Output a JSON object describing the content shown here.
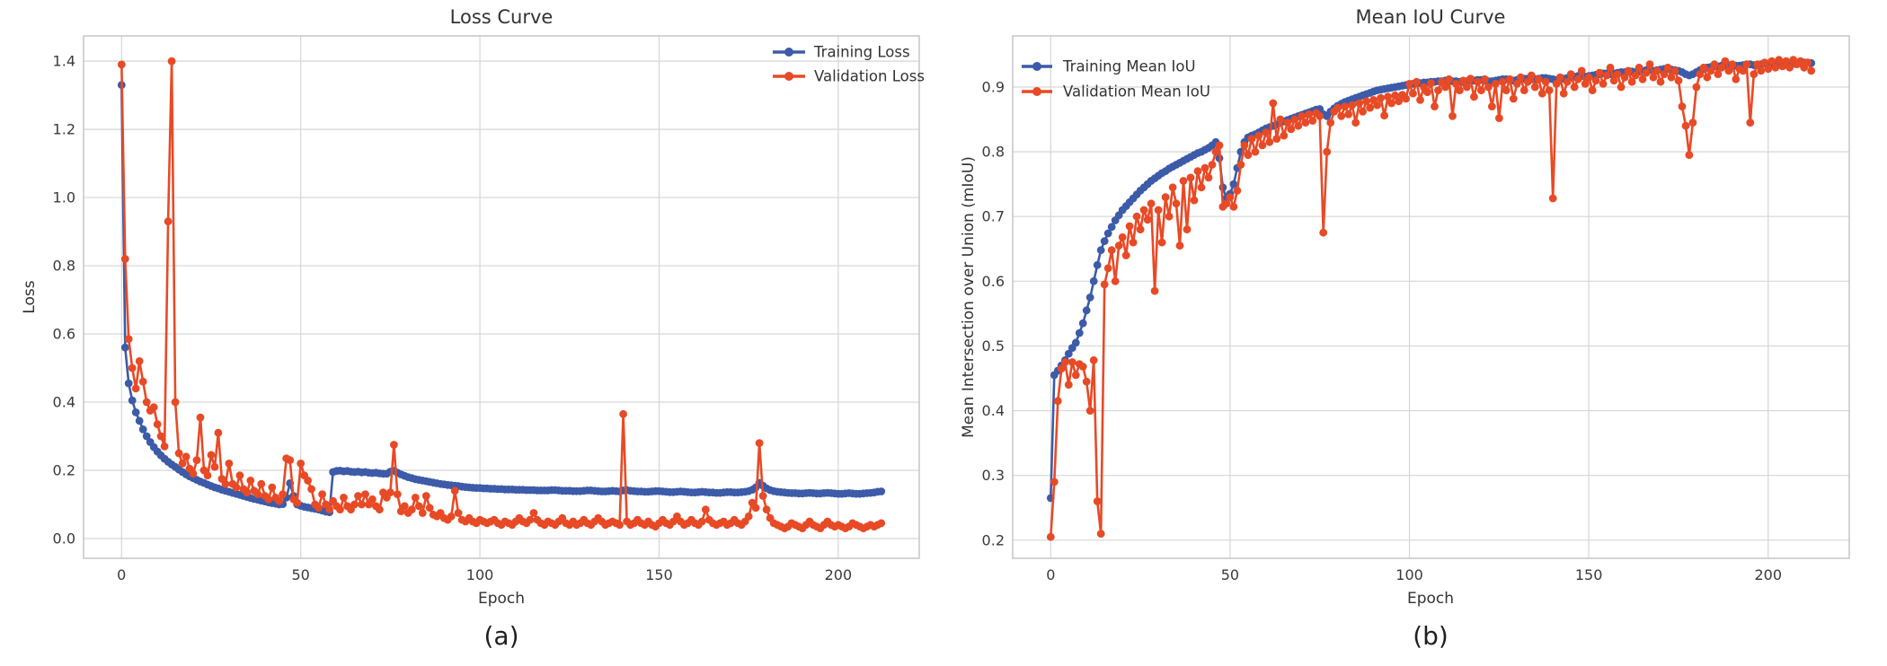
{
  "figure": {
    "background": "#ffffff",
    "captions": {
      "a": "(a)",
      "b": "(b)"
    }
  },
  "colors": {
    "training": "#3C5BA8",
    "validation": "#E84A26",
    "grid": "#d6d6d6",
    "spine": "#c2c2c2",
    "text": "#333333"
  },
  "chart_data": [
    {
      "type": "line",
      "title": "Loss Curve",
      "xlabel": "Epoch",
      "ylabel": "Loss",
      "x_start": 0,
      "x_step": 1,
      "xlim": [
        -10.6,
        222.6
      ],
      "ylim": [
        -0.058,
        1.474
      ],
      "xticks": [
        0,
        50,
        100,
        150,
        200
      ],
      "yticks": [
        0.0,
        0.2,
        0.4,
        0.6,
        0.8,
        1.0,
        1.2,
        1.4
      ],
      "grid": true,
      "legend_position": "upper right",
      "series": [
        {
          "name": "Training Loss",
          "color": "#3C5BA8",
          "values": [
            1.33,
            0.56,
            0.455,
            0.405,
            0.37,
            0.345,
            0.32,
            0.3,
            0.283,
            0.268,
            0.255,
            0.244,
            0.234,
            0.225,
            0.217,
            0.21,
            0.202,
            0.195,
            0.188,
            0.182,
            0.177,
            0.172,
            0.167,
            0.163,
            0.158,
            0.154,
            0.15,
            0.147,
            0.143,
            0.14,
            0.137,
            0.134,
            0.131,
            0.128,
            0.125,
            0.122,
            0.119,
            0.116,
            0.114,
            0.111,
            0.109,
            0.106,
            0.104,
            0.102,
            0.1,
            0.101,
            0.12,
            0.162,
            0.125,
            0.1,
            0.096,
            0.093,
            0.091,
            0.089,
            0.087,
            0.085,
            0.082,
            0.079,
            0.077,
            0.195,
            0.198,
            0.199,
            0.197,
            0.198,
            0.196,
            0.195,
            0.196,
            0.194,
            0.195,
            0.193,
            0.192,
            0.193,
            0.191,
            0.19,
            0.19,
            0.196,
            0.199,
            0.193,
            0.188,
            0.184,
            0.18,
            0.177,
            0.174,
            0.172,
            0.17,
            0.168,
            0.166,
            0.164,
            0.162,
            0.16,
            0.159,
            0.157,
            0.156,
            0.155,
            0.154,
            0.152,
            0.151,
            0.15,
            0.149,
            0.148,
            0.148,
            0.147,
            0.147,
            0.146,
            0.146,
            0.145,
            0.145,
            0.144,
            0.144,
            0.144,
            0.143,
            0.143,
            0.143,
            0.142,
            0.142,
            0.142,
            0.141,
            0.141,
            0.141,
            0.141,
            0.142,
            0.142,
            0.141,
            0.14,
            0.14,
            0.14,
            0.139,
            0.139,
            0.139,
            0.14,
            0.141,
            0.141,
            0.14,
            0.139,
            0.138,
            0.138,
            0.139,
            0.14,
            0.139,
            0.138,
            0.141,
            0.142,
            0.14,
            0.139,
            0.138,
            0.138,
            0.137,
            0.137,
            0.138,
            0.139,
            0.139,
            0.138,
            0.137,
            0.136,
            0.136,
            0.137,
            0.138,
            0.137,
            0.136,
            0.135,
            0.135,
            0.136,
            0.137,
            0.136,
            0.135,
            0.135,
            0.134,
            0.134,
            0.135,
            0.136,
            0.136,
            0.135,
            0.135,
            0.136,
            0.137,
            0.139,
            0.143,
            0.15,
            0.163,
            0.155,
            0.147,
            0.142,
            0.139,
            0.137,
            0.136,
            0.135,
            0.134,
            0.133,
            0.133,
            0.132,
            0.132,
            0.133,
            0.134,
            0.133,
            0.132,
            0.132,
            0.133,
            0.134,
            0.133,
            0.132,
            0.131,
            0.131,
            0.132,
            0.133,
            0.132,
            0.131,
            0.131,
            0.132,
            0.133,
            0.134,
            0.135,
            0.137,
            0.138
          ]
        },
        {
          "name": "Validation Loss",
          "color": "#E84A26",
          "values": [
            1.39,
            0.82,
            0.585,
            0.5,
            0.44,
            0.52,
            0.46,
            0.4,
            0.375,
            0.385,
            0.335,
            0.3,
            0.27,
            0.93,
            1.4,
            0.4,
            0.25,
            0.22,
            0.24,
            0.205,
            0.19,
            0.23,
            0.355,
            0.2,
            0.185,
            0.245,
            0.21,
            0.31,
            0.175,
            0.16,
            0.22,
            0.16,
            0.15,
            0.185,
            0.145,
            0.135,
            0.17,
            0.14,
            0.13,
            0.16,
            0.125,
            0.115,
            0.15,
            0.12,
            0.11,
            0.13,
            0.235,
            0.23,
            0.115,
            0.105,
            0.22,
            0.185,
            0.17,
            0.145,
            0.1,
            0.09,
            0.13,
            0.1,
            0.085,
            0.11,
            0.095,
            0.085,
            0.12,
            0.095,
            0.085,
            0.1,
            0.125,
            0.1,
            0.13,
            0.1,
            0.115,
            0.095,
            0.085,
            0.135,
            0.12,
            0.135,
            0.275,
            0.13,
            0.08,
            0.095,
            0.075,
            0.085,
            0.12,
            0.095,
            0.075,
            0.125,
            0.09,
            0.07,
            0.065,
            0.075,
            0.06,
            0.055,
            0.065,
            0.14,
            0.075,
            0.055,
            0.05,
            0.06,
            0.05,
            0.045,
            0.055,
            0.05,
            0.045,
            0.05,
            0.055,
            0.045,
            0.04,
            0.05,
            0.045,
            0.04,
            0.05,
            0.06,
            0.05,
            0.045,
            0.055,
            0.075,
            0.055,
            0.045,
            0.04,
            0.05,
            0.045,
            0.04,
            0.05,
            0.06,
            0.045,
            0.04,
            0.05,
            0.04,
            0.045,
            0.055,
            0.045,
            0.04,
            0.05,
            0.06,
            0.05,
            0.04,
            0.045,
            0.05,
            0.045,
            0.04,
            0.365,
            0.05,
            0.04,
            0.045,
            0.055,
            0.045,
            0.04,
            0.05,
            0.04,
            0.035,
            0.045,
            0.055,
            0.045,
            0.04,
            0.05,
            0.065,
            0.05,
            0.04,
            0.045,
            0.055,
            0.045,
            0.04,
            0.05,
            0.085,
            0.055,
            0.045,
            0.04,
            0.045,
            0.05,
            0.04,
            0.045,
            0.055,
            0.045,
            0.04,
            0.05,
            0.065,
            0.105,
            0.09,
            0.28,
            0.125,
            0.085,
            0.06,
            0.045,
            0.04,
            0.035,
            0.03,
            0.035,
            0.045,
            0.04,
            0.035,
            0.03,
            0.04,
            0.05,
            0.04,
            0.035,
            0.03,
            0.04,
            0.05,
            0.04,
            0.035,
            0.04,
            0.035,
            0.03,
            0.035,
            0.045,
            0.04,
            0.035,
            0.03,
            0.035,
            0.04,
            0.035,
            0.04,
            0.045
          ]
        }
      ]
    },
    {
      "type": "line",
      "title": "Mean IoU Curve",
      "xlabel": "Epoch",
      "ylabel": "Mean Intersection over Union (mIoU)",
      "x_start": 0,
      "x_step": 1,
      "xlim": [
        -10.6,
        222.6
      ],
      "ylim": [
        0.172,
        0.979
      ],
      "xticks": [
        0,
        50,
        100,
        150,
        200
      ],
      "yticks": [
        0.2,
        0.3,
        0.4,
        0.5,
        0.6,
        0.7,
        0.8,
        0.9
      ],
      "grid": true,
      "legend_position": "upper left",
      "series": [
        {
          "name": "Training Mean IoU",
          "color": "#3C5BA8",
          "values": [
            0.265,
            0.455,
            0.462,
            0.47,
            0.478,
            0.488,
            0.497,
            0.505,
            0.52,
            0.535,
            0.555,
            0.575,
            0.6,
            0.625,
            0.648,
            0.662,
            0.674,
            0.684,
            0.694,
            0.702,
            0.71,
            0.716,
            0.722,
            0.728,
            0.734,
            0.74,
            0.745,
            0.75,
            0.755,
            0.759,
            0.763,
            0.767,
            0.77,
            0.774,
            0.777,
            0.78,
            0.783,
            0.786,
            0.789,
            0.792,
            0.795,
            0.798,
            0.8,
            0.803,
            0.806,
            0.81,
            0.815,
            0.79,
            0.745,
            0.728,
            0.735,
            0.75,
            0.775,
            0.8,
            0.815,
            0.822,
            0.825,
            0.827,
            0.83,
            0.833,
            0.836,
            0.838,
            0.84,
            0.842,
            0.845,
            0.847,
            0.849,
            0.851,
            0.853,
            0.855,
            0.857,
            0.859,
            0.861,
            0.863,
            0.865,
            0.866,
            0.858,
            0.855,
            0.862,
            0.867,
            0.871,
            0.874,
            0.877,
            0.879,
            0.881,
            0.883,
            0.885,
            0.887,
            0.889,
            0.891,
            0.893,
            0.895,
            0.896,
            0.897,
            0.898,
            0.899,
            0.9,
            0.901,
            0.902,
            0.903,
            0.904,
            0.905,
            0.906,
            0.906,
            0.907,
            0.907,
            0.908,
            0.908,
            0.909,
            0.909,
            0.91,
            0.91,
            0.909,
            0.909,
            0.908,
            0.908,
            0.909,
            0.91,
            0.91,
            0.911,
            0.911,
            0.91,
            0.909,
            0.909,
            0.91,
            0.911,
            0.912,
            0.912,
            0.911,
            0.91,
            0.911,
            0.912,
            0.913,
            0.913,
            0.912,
            0.912,
            0.913,
            0.914,
            0.914,
            0.913,
            0.912,
            0.911,
            0.912,
            0.913,
            0.914,
            0.915,
            0.916,
            0.917,
            0.917,
            0.916,
            0.917,
            0.918,
            0.919,
            0.92,
            0.921,
            0.921,
            0.92,
            0.921,
            0.922,
            0.923,
            0.923,
            0.924,
            0.924,
            0.923,
            0.924,
            0.925,
            0.926,
            0.926,
            0.925,
            0.926,
            0.927,
            0.928,
            0.928,
            0.927,
            0.926,
            0.925,
            0.923,
            0.92,
            0.918,
            0.92,
            0.923,
            0.926,
            0.928,
            0.93,
            0.931,
            0.932,
            0.932,
            0.933,
            0.933,
            0.934,
            0.934,
            0.933,
            0.933,
            0.934,
            0.935,
            0.935,
            0.934,
            0.934,
            0.935,
            0.936,
            0.936,
            0.935,
            0.935,
            0.936,
            0.937,
            0.937,
            0.936,
            0.936,
            0.937,
            0.937,
            0.938,
            0.938,
            0.937
          ]
        },
        {
          "name": "Validation Mean IoU",
          "color": "#E84A26",
          "values": [
            0.205,
            0.29,
            0.415,
            0.465,
            0.475,
            0.44,
            0.475,
            0.455,
            0.472,
            0.468,
            0.445,
            0.4,
            0.478,
            0.26,
            0.21,
            0.595,
            0.62,
            0.648,
            0.6,
            0.655,
            0.668,
            0.64,
            0.685,
            0.66,
            0.7,
            0.68,
            0.71,
            0.695,
            0.72,
            0.585,
            0.71,
            0.66,
            0.73,
            0.7,
            0.745,
            0.72,
            0.655,
            0.755,
            0.68,
            0.76,
            0.725,
            0.77,
            0.745,
            0.775,
            0.76,
            0.78,
            0.8,
            0.81,
            0.715,
            0.72,
            0.73,
            0.715,
            0.74,
            0.78,
            0.81,
            0.795,
            0.82,
            0.8,
            0.825,
            0.81,
            0.83,
            0.815,
            0.875,
            0.82,
            0.85,
            0.825,
            0.845,
            0.835,
            0.85,
            0.84,
            0.855,
            0.845,
            0.858,
            0.848,
            0.86,
            0.855,
            0.675,
            0.8,
            0.845,
            0.862,
            0.868,
            0.855,
            0.87,
            0.858,
            0.872,
            0.845,
            0.875,
            0.862,
            0.878,
            0.868,
            0.88,
            0.872,
            0.883,
            0.856,
            0.885,
            0.875,
            0.887,
            0.878,
            0.888,
            0.882,
            0.905,
            0.89,
            0.908,
            0.88,
            0.9,
            0.892,
            0.906,
            0.87,
            0.895,
            0.908,
            0.9,
            0.912,
            0.855,
            0.905,
            0.895,
            0.91,
            0.9,
            0.913,
            0.885,
            0.908,
            0.895,
            0.912,
            0.9,
            0.87,
            0.905,
            0.852,
            0.908,
            0.895,
            0.912,
            0.882,
            0.905,
            0.915,
            0.895,
            0.908,
            0.918,
            0.9,
            0.912,
            0.89,
            0.908,
            0.895,
            0.728,
            0.905,
            0.915,
            0.89,
            0.908,
            0.92,
            0.9,
            0.912,
            0.925,
            0.905,
            0.915,
            0.895,
            0.91,
            0.922,
            0.905,
            0.918,
            0.93,
            0.91,
            0.92,
            0.9,
            0.915,
            0.925,
            0.908,
            0.918,
            0.93,
            0.912,
            0.922,
            0.935,
            0.915,
            0.925,
            0.908,
            0.92,
            0.93,
            0.915,
            0.925,
            0.91,
            0.87,
            0.84,
            0.795,
            0.845,
            0.9,
            0.92,
            0.93,
            0.915,
            0.925,
            0.935,
            0.92,
            0.93,
            0.94,
            0.925,
            0.935,
            0.912,
            0.928,
            0.925,
            0.935,
            0.845,
            0.92,
            0.935,
            0.925,
            0.938,
            0.928,
            0.94,
            0.93,
            0.942,
            0.932,
            0.94,
            0.93,
            0.942,
            0.935,
            0.94,
            0.93,
            0.938,
            0.925
          ]
        }
      ]
    }
  ]
}
